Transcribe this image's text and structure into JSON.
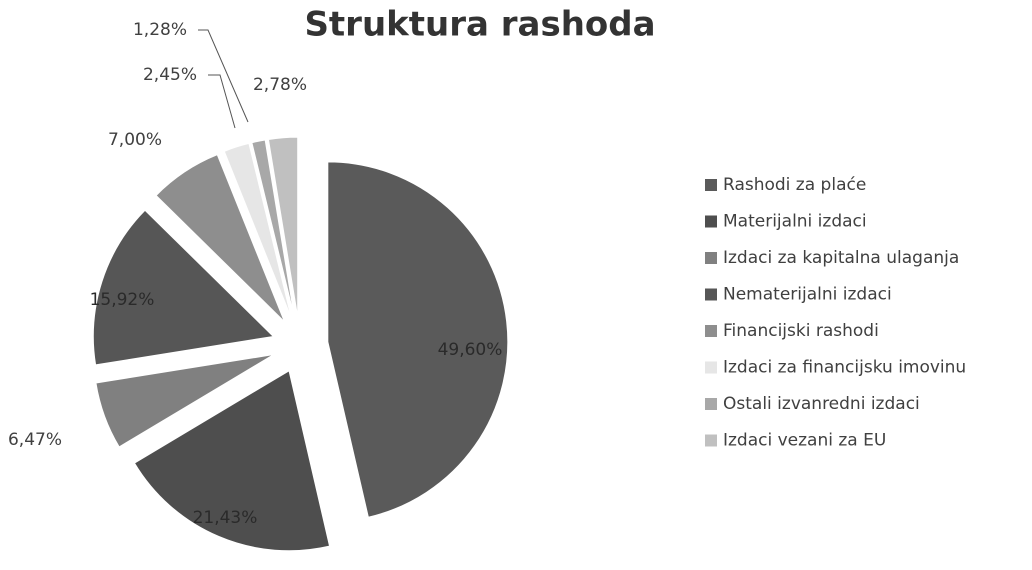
{
  "chart_data": {
    "type": "pie",
    "title": "Struktura rashoda",
    "categories": [
      "Rashodi za plaće",
      "Materijalni izdaci",
      "Izdaci za kapitalna ulaganja",
      "Nematerijalni izdaci",
      "Financijski rashodi",
      "Izdaci za financijsku imovinu",
      "Ostali izvanredni izdaci",
      "Izdaci vezani za EU"
    ],
    "values": [
      49.6,
      21.43,
      6.47,
      15.92,
      7.0,
      2.45,
      1.28,
      2.78
    ],
    "value_labels": [
      "49,60%",
      "21,43%",
      "6,47%",
      "15,92%",
      "7,00%",
      "2,45%",
      "1,28%",
      "2,78%"
    ],
    "colors": [
      "#5a5a5a",
      "#4e4e4e",
      "#808080",
      "#565656",
      "#8e8e8e",
      "#e6e6e6",
      "#a8a8a8",
      "#c0c0c0"
    ],
    "legend": "right"
  }
}
